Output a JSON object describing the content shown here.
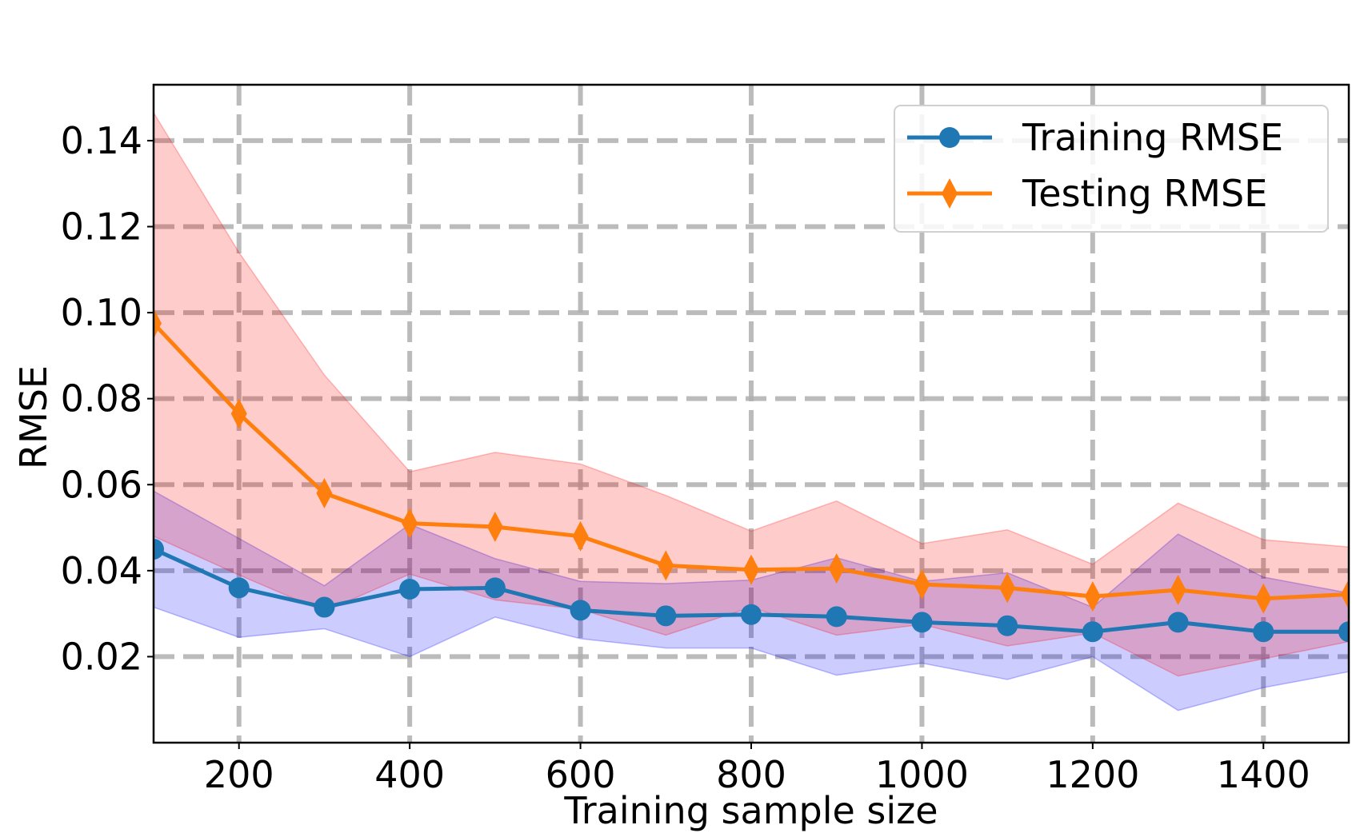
{
  "chart_data": {
    "type": "line",
    "title": "",
    "xlabel": "Training sample size",
    "ylabel": "RMSE",
    "xlim": [
      100,
      1500
    ],
    "ylim": [
      0.0,
      0.153
    ],
    "grid": true,
    "legend_position": "top-right",
    "x": [
      100,
      200,
      300,
      400,
      500,
      600,
      700,
      800,
      900,
      1000,
      1100,
      1200,
      1300,
      1400,
      1500
    ],
    "x_ticks": [
      200,
      400,
      600,
      800,
      1000,
      1200,
      1400
    ],
    "x_tick_labels": [
      "200",
      "400",
      "600",
      "800",
      "1000",
      "1200",
      "1400"
    ],
    "y_ticks": [
      0.02,
      0.04,
      0.06,
      0.08,
      0.1,
      0.12,
      0.14
    ],
    "y_tick_labels": [
      "0.02",
      "0.04",
      "0.06",
      "0.08",
      "0.10",
      "0.12",
      "0.14"
    ],
    "series": [
      {
        "name": "Training RMSE",
        "color": "#1f77b4",
        "band_color": "#0000ff",
        "marker": "circle",
        "values": [
          0.045,
          0.036,
          0.0315,
          0.0357,
          0.036,
          0.0308,
          0.0295,
          0.0298,
          0.0293,
          0.028,
          0.0272,
          0.0258,
          0.028,
          0.0258,
          0.0258
        ],
        "lower": [
          0.0315,
          0.0245,
          0.0265,
          0.02,
          0.0292,
          0.0242,
          0.022,
          0.022,
          0.0157,
          0.0185,
          0.0147,
          0.02,
          0.0075,
          0.0128,
          0.0165
        ],
        "upper": [
          0.0585,
          0.0475,
          0.0365,
          0.0508,
          0.0428,
          0.0375,
          0.037,
          0.0378,
          0.043,
          0.0375,
          0.0395,
          0.0315,
          0.0485,
          0.0385,
          0.0348
        ]
      },
      {
        "name": "Testing RMSE",
        "color": "#ff7f0e",
        "band_color": "#ff0000",
        "marker": "thin_diamond",
        "values": [
          0.0975,
          0.0765,
          0.058,
          0.051,
          0.0502,
          0.048,
          0.0412,
          0.0402,
          0.0405,
          0.0368,
          0.036,
          0.034,
          0.0355,
          0.0335,
          0.0345
        ],
        "lower": [
          0.048,
          0.039,
          0.0305,
          0.0392,
          0.0332,
          0.031,
          0.025,
          0.0315,
          0.025,
          0.0275,
          0.0225,
          0.0255,
          0.0155,
          0.0195,
          0.0235
        ],
        "upper": [
          0.1465,
          0.114,
          0.0855,
          0.063,
          0.0675,
          0.0648,
          0.0575,
          0.0492,
          0.0562,
          0.0463,
          0.0495,
          0.0415,
          0.0557,
          0.0472,
          0.0455
        ]
      }
    ]
  }
}
